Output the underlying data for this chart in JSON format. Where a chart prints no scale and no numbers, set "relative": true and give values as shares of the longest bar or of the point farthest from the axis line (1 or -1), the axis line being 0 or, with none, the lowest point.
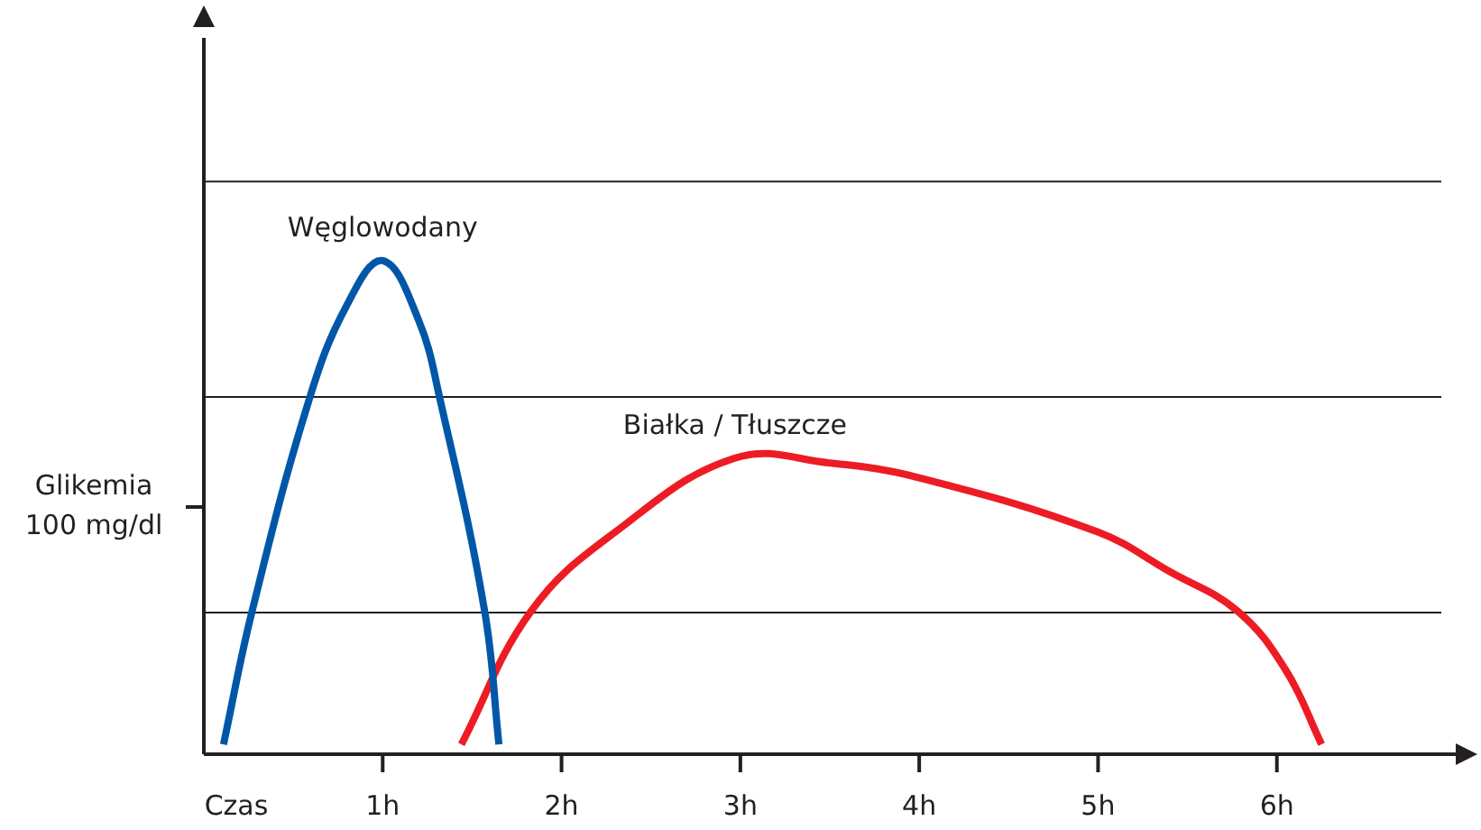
{
  "chart_data": {
    "type": "line",
    "relative": true,
    "xlabel": "Czas",
    "xlim": [
      0,
      7
    ],
    "xticks": [
      {
        "value": 1,
        "label": "1h"
      },
      {
        "value": 2,
        "label": "2h"
      },
      {
        "value": 3,
        "label": "3h"
      },
      {
        "value": 4,
        "label": "4h"
      },
      {
        "value": 5,
        "label": "5h"
      },
      {
        "value": 6,
        "label": "6h"
      }
    ],
    "series": [
      {
        "name": "Węglowodany",
        "color": "#0057a8",
        "x": [
          0.11,
          0.27,
          0.59,
          0.8,
          1.0,
          1.2,
          1.32,
          1.57,
          1.65
        ],
        "values": [
          0.02,
          0.29,
          0.72,
          0.91,
          1,
          0.88,
          0.72,
          0.29,
          0.02
        ]
      },
      {
        "name": "Białka / Tłuszcze",
        "color": "#ed1c24",
        "x": [
          1.44,
          1.83,
          2.3,
          2.97,
          3.5,
          4,
          5,
          5.4,
          5.78,
          6.05,
          6.25
        ],
        "values": [
          0.02,
          0.29,
          0.45,
          0.6,
          0.59,
          0.56,
          0.45,
          0.37,
          0.29,
          0.17,
          0.02
        ]
      }
    ],
    "ref_lines": [
      {
        "axis": "y",
        "value": 0.287,
        "color": "#231f20"
      },
      {
        "axis": "y",
        "value": 0.724,
        "color": "#231f20"
      },
      {
        "axis": "y",
        "value": 1.16,
        "color": "#231f20"
      }
    ],
    "annotations": [
      "Glikemia 100 mg/dl"
    ],
    "grid": false,
    "legend": false,
    "marker": "none",
    "line_style": "solid"
  }
}
